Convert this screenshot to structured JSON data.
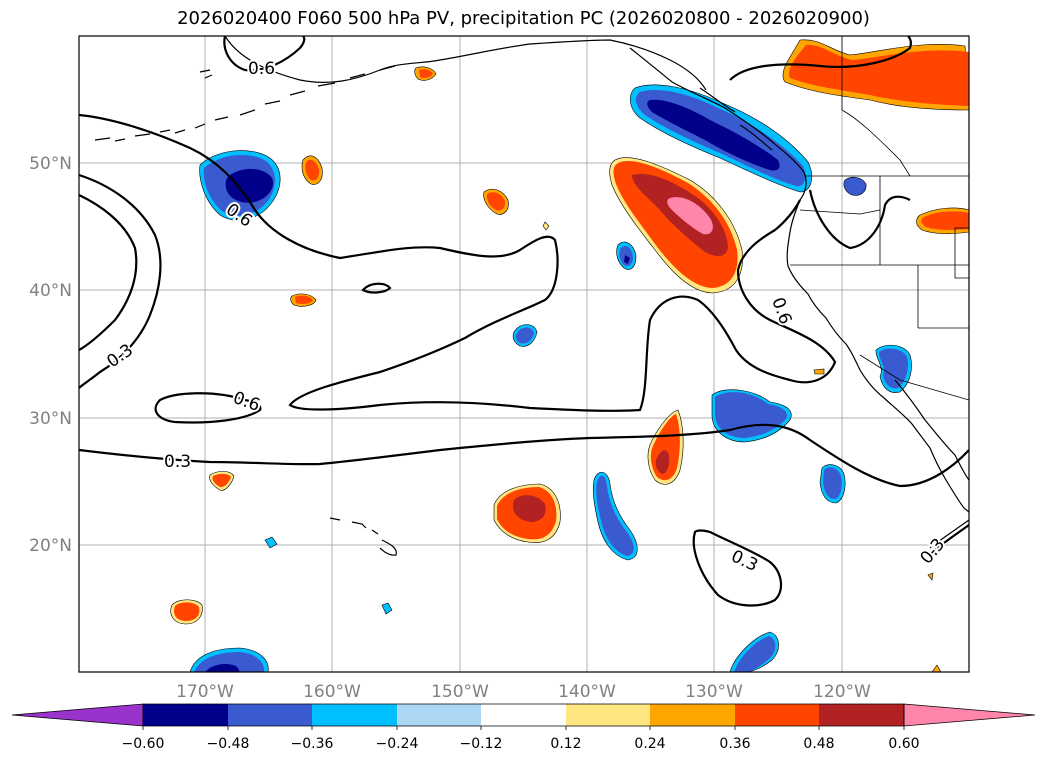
{
  "title": "2026020400 F060 500 hPa PV, precipitation PC (2026020800 - 2026020900)",
  "lon_labels": [
    "170°W",
    "160°W",
    "150°W",
    "140°W",
    "130°W",
    "120°W"
  ],
  "lat_labels": [
    "50°N",
    "40°N",
    "30°N",
    "20°N"
  ],
  "contour_labels": [
    "0.6",
    "0.6",
    "0.6",
    "0.6",
    "0.3",
    "0.3",
    "0.3",
    "0.3"
  ],
  "colorbar": {
    "ticks": [
      "−0.60",
      "−0.48",
      "−0.36",
      "−0.24",
      "−0.12",
      "0.12",
      "0.24",
      "0.36",
      "0.48",
      "0.60"
    ],
    "colors": [
      "#9933cc",
      "#00008b",
      "#3a5bd0",
      "#00bfff",
      "#add8f5",
      "#ffffff",
      "#ffe680",
      "#ffa500",
      "#ff4500",
      "#b22222",
      "#ff85aa"
    ]
  },
  "palette": {
    "dark_blue": "#00008b",
    "blue": "#3a5bd0",
    "light_blue": "#00bfff",
    "pale_yellow": "#ffe680",
    "orange": "#ffa500",
    "red_orange": "#ff4500",
    "dark_red": "#b22222",
    "pink": "#ff85aa"
  }
}
